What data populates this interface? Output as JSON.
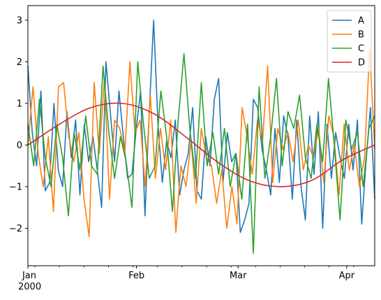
{
  "chart_data": {
    "type": "line",
    "x_start": "2000-01-01",
    "x_end": "2000-04-09",
    "x_ticks": [
      {
        "date": "2000-01-01",
        "label": "Jan",
        "sublabel": "2000"
      },
      {
        "date": "2000-02-01",
        "label": "Feb"
      },
      {
        "date": "2000-03-01",
        "label": "Mar"
      },
      {
        "date": "2000-04-01",
        "label": "Apr"
      }
    ],
    "ylim": [
      -2.9,
      3.35
    ],
    "y_ticks": [
      -2,
      -1,
      0,
      1,
      2,
      3
    ],
    "y_tick_labels": [
      "−2",
      "−1",
      "0",
      "1",
      "2",
      "3"
    ],
    "legend": {
      "position": "top-right"
    },
    "grid": false,
    "series": [
      {
        "name": "A",
        "color": "#1f77b4",
        "values": [
          1.9,
          0.3,
          -0.5,
          1.3,
          -1.1,
          -0.9,
          1.0,
          -0.6,
          -1.0,
          0.8,
          -0.3,
          0.6,
          -1.2,
          0.5,
          -0.4,
          0.2,
          -0.6,
          -1.5,
          2.0,
          0.8,
          -0.4,
          1.3,
          0.2,
          -0.8,
          -0.7,
          0.4,
          1.3,
          -1.7,
          0.8,
          3.0,
          0.5,
          -0.9,
          0.1,
          -0.3,
          0.6,
          -1.2,
          -0.6,
          -0.2,
          0.9,
          -1.1,
          -1.3,
          0.2,
          -0.5,
          1.1,
          1.6,
          -0.9,
          0.3,
          -0.4,
          -0.2,
          -2.1,
          -1.8,
          -1.4,
          1.1,
          0.9,
          -0.1,
          -0.6,
          -1.2,
          0.4,
          -0.9,
          0.7,
          0.2,
          -1.3,
          0.6,
          -1.0,
          -1.8,
          0.7,
          -0.7,
          0.8,
          -2.0,
          0.5,
          -0.8,
          0.3,
          -0.3,
          -0.8,
          0.5,
          -0.6,
          0.6,
          -1.9,
          -0.4,
          0.9,
          -1.3
        ]
      },
      {
        "name": "B",
        "color": "#ff7f0e",
        "values": [
          0.0,
          1.4,
          -0.2,
          -1.0,
          0.2,
          -1.6,
          1.4,
          1.5,
          0.2,
          -0.4,
          0.3,
          -1.3,
          -2.2,
          1.5,
          -0.2,
          1.6,
          -1.3,
          0.6,
          0.4,
          -0.2,
          2.0,
          0.3,
          0.6,
          -1.0,
          1.2,
          -0.8,
          0.4,
          -0.6,
          0.6,
          -2.1,
          -0.5,
          -1.0,
          0.1,
          -1.4,
          0.4,
          -0.3,
          -0.5,
          -1.4,
          -0.6,
          -2.0,
          -1.0,
          -1.9,
          0.9,
          0.2,
          -0.7,
          0.6,
          0.1,
          1.9,
          -0.9,
          0.4,
          -0.1,
          0.3,
          -0.4,
          0.6,
          -0.6,
          0.0,
          -0.3,
          0.4,
          -0.9,
          0.7,
          0.2,
          -1.2,
          0.5,
          -0.6,
          0.0,
          -1.0,
          -0.3,
          2.3,
          -0.1
        ]
      },
      {
        "name": "C",
        "color": "#2ca02c",
        "values": [
          0.5,
          -0.5,
          1.1,
          -0.3,
          -1.0,
          0.5,
          -0.3,
          -1.7,
          0.3,
          -0.6,
          0.7,
          -0.5,
          -0.7,
          1.9,
          0.3,
          -0.8,
          0.2,
          -0.4,
          -1.5,
          2.0,
          0.5,
          -0.8,
          -0.5,
          1.3,
          0.2,
          -1.6,
          0.6,
          2.2,
          0.4,
          -0.8,
          1.5,
          -0.5,
          0.3,
          -0.7,
          0.4,
          -1.0,
          -0.2,
          -1.3,
          0.5,
          -2.6,
          1.4,
          -0.8,
          0.2,
          1.6,
          -0.5,
          0.8,
          0.4,
          1.2,
          -0.3,
          -0.8,
          0.5,
          -0.4,
          1.6,
          0.0,
          -1.8,
          0.6,
          -0.1,
          0.3,
          -1.0,
          0.4,
          0.7
        ]
      },
      {
        "name": "D",
        "color": "#d62728",
        "values": [
          0.0,
          0.5,
          0.9,
          1.0,
          0.75,
          0.2,
          -0.4,
          -0.85,
          -1.0,
          -0.85,
          -0.35,
          0.0
        ]
      }
    ]
  }
}
